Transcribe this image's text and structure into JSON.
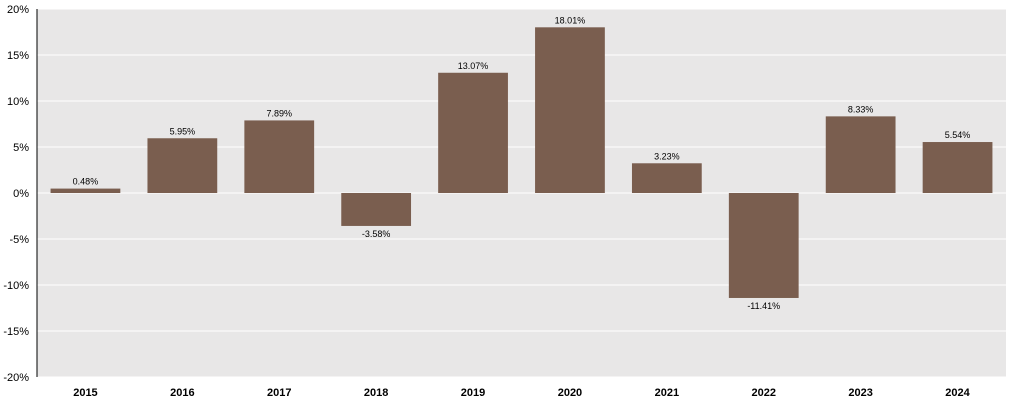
{
  "chart_data": {
    "type": "bar",
    "categories": [
      "2015",
      "2016",
      "2017",
      "2018",
      "2019",
      "2020",
      "2021",
      "2022",
      "2023",
      "2024"
    ],
    "values": [
      0.48,
      5.95,
      7.89,
      -3.58,
      13.07,
      18.01,
      3.23,
      -11.41,
      8.33,
      5.54
    ],
    "data_labels": [
      "0.48%",
      "5.95%",
      "7.89%",
      "-3.58%",
      "13.07%",
      "18.01%",
      "3.23%",
      "-11.41%",
      "8.33%",
      "5.54%"
    ],
    "ylim": [
      -20,
      20
    ],
    "yticks": [
      20,
      15,
      10,
      5,
      0,
      -5,
      -10,
      -15,
      -20
    ],
    "ytick_labels": [
      "20%",
      "15%",
      "10%",
      "5%",
      "0%",
      "-5%",
      "-10%",
      "-15%",
      "-20%"
    ],
    "title": "",
    "xlabel": "",
    "ylabel": "",
    "grid": true,
    "legend": "none",
    "colors": {
      "bar": "#7a5e4f",
      "plot_background": "#e8e7e7",
      "grid": "#ffffff",
      "axis": "#000000"
    }
  }
}
